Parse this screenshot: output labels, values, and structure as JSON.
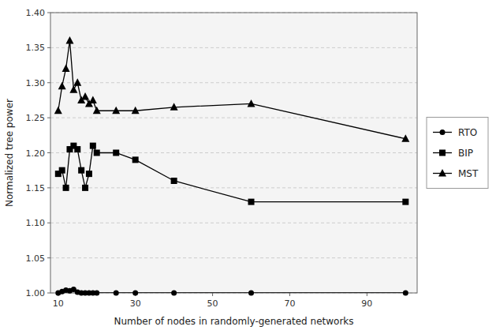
{
  "chart_data": {
    "type": "line",
    "xlabel": "Number of nodes in randomly-generated networks",
    "ylabel": "Normalized tree power",
    "x": [
      10,
      11,
      12,
      13,
      14,
      15,
      16,
      17,
      18,
      19,
      20,
      25,
      30,
      40,
      60,
      100
    ],
    "series": [
      {
        "name": "RTO",
        "color": "#000000",
        "marker": "circle",
        "values": [
          1.0,
          1.002,
          1.004,
          1.003,
          1.005,
          1.001,
          1.0,
          1.0,
          1.0,
          1.0,
          1.0,
          1.0,
          1.0,
          1.0,
          1.0,
          1.0
        ]
      },
      {
        "name": "BIP",
        "color": "#000000",
        "marker": "square",
        "values": [
          1.17,
          1.175,
          1.15,
          1.205,
          1.21,
          1.205,
          1.175,
          1.15,
          1.17,
          1.21,
          1.2,
          1.2,
          1.19,
          1.16,
          1.13,
          1.13
        ]
      },
      {
        "name": "MST",
        "color": "#000000",
        "marker": "triangle",
        "values": [
          1.26,
          1.295,
          1.32,
          1.36,
          1.29,
          1.3,
          1.275,
          1.28,
          1.27,
          1.275,
          1.26,
          1.26,
          1.26,
          1.265,
          1.27,
          1.22
        ]
      }
    ],
    "xlim": [
      8,
      103
    ],
    "ylim": [
      1.0,
      1.4
    ],
    "xticks": [
      10,
      30,
      50,
      70,
      90
    ],
    "yticks": [
      {
        "value": 1.0,
        "label": "1.00"
      },
      1.05,
      {
        "value": 1.1,
        "label": "1.10"
      },
      1.15,
      {
        "value": 1.2,
        "label": "1.20"
      },
      1.25,
      {
        "value": 1.3,
        "label": "1.30"
      },
      1.35,
      {
        "value": 1.4,
        "label": "1.40"
      }
    ],
    "grid": true,
    "legend": "right"
  }
}
